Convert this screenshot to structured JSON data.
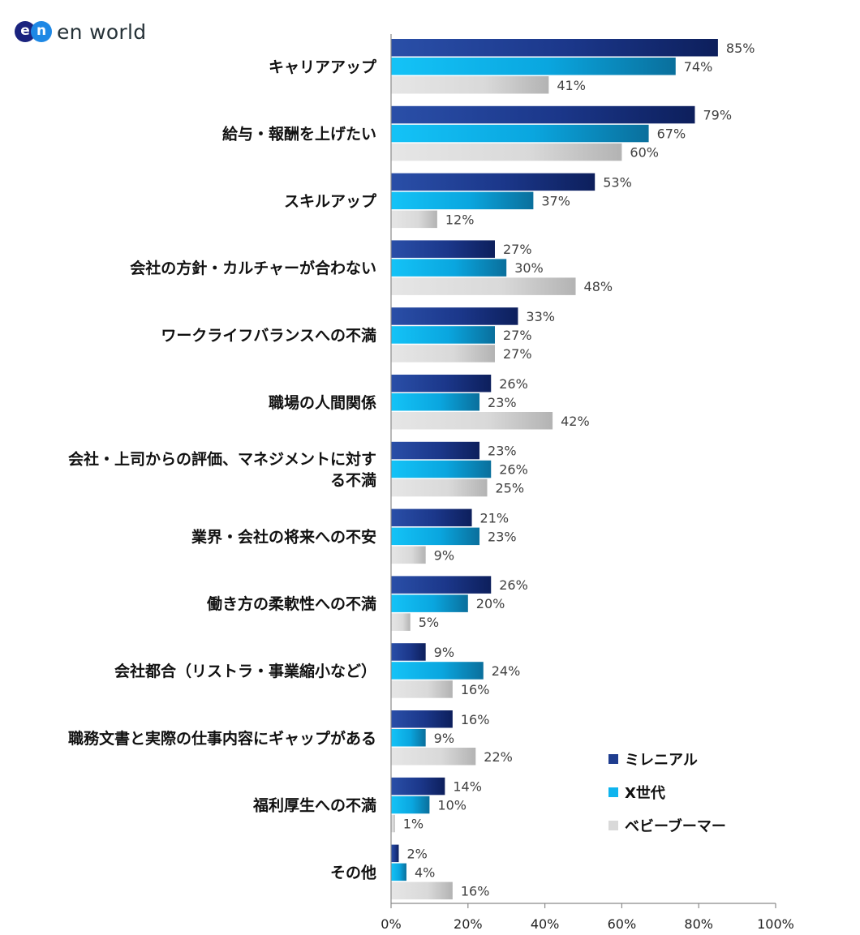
{
  "brand": {
    "logo_e": "e",
    "logo_n": "n",
    "name": "en world"
  },
  "colors": {
    "millennial": "#1f3d8f",
    "genx": "#0fb4ee",
    "boomer": "#d9d9d9",
    "axis": "#8a8a8a"
  },
  "chart_data": {
    "type": "bar",
    "orientation": "horizontal",
    "categories": [
      "キャリアアップ",
      "給与・報酬を上げたい",
      "スキルアップ",
      "会社の方針・カルチャーが合わない",
      "ワークライフバランスへの不満",
      "職場の人間関係",
      "会社・上司からの評価、マネジメントに対する不満",
      "業界・会社の将来への不安",
      "働き方の柔軟性への不満",
      "会社都合（リストラ・事業縮小など）",
      "職務文書と実際の仕事内容にギャップがある",
      "福利厚生への不満",
      "その他"
    ],
    "category_lines": [
      [
        "キャリアアップ"
      ],
      [
        "給与・報酬を上げたい"
      ],
      [
        "スキルアップ"
      ],
      [
        "会社の方針・カルチャーが合わない"
      ],
      [
        "ワークライフバランスへの不満"
      ],
      [
        "職場の人間関係"
      ],
      [
        "会社・上司からの評価、マネジメントに対す",
        "る不満"
      ],
      [
        "業界・会社の将来への不安"
      ],
      [
        "働き方の柔軟性への不満"
      ],
      [
        "会社都合（リストラ・事業縮小など）"
      ],
      [
        "職務文書と実際の仕事内容にギャップがある"
      ],
      [
        "福利厚生への不満"
      ],
      [
        "その他"
      ]
    ],
    "series": [
      {
        "name": "ミレニアル",
        "key": "millennial",
        "values": [
          85,
          79,
          53,
          27,
          33,
          26,
          23,
          21,
          26,
          9,
          16,
          14,
          2
        ]
      },
      {
        "name": "X世代",
        "key": "genx",
        "values": [
          74,
          67,
          37,
          30,
          27,
          23,
          26,
          23,
          20,
          24,
          9,
          10,
          4
        ]
      },
      {
        "name": "ベビーブーマー",
        "key": "boomer",
        "values": [
          41,
          60,
          12,
          48,
          27,
          42,
          25,
          9,
          5,
          16,
          22,
          1,
          16
        ]
      }
    ],
    "value_suffix": "%",
    "xlim": [
      0,
      100
    ],
    "xticks": [
      0,
      20,
      40,
      60,
      80,
      100
    ],
    "xtick_labels": [
      "0%",
      "20%",
      "40%",
      "60%",
      "80%",
      "100%"
    ],
    "legend": [
      "ミレニアル",
      "X世代",
      "ベビーブーマー"
    ],
    "legend_position": "bottom-right",
    "grid": false
  }
}
